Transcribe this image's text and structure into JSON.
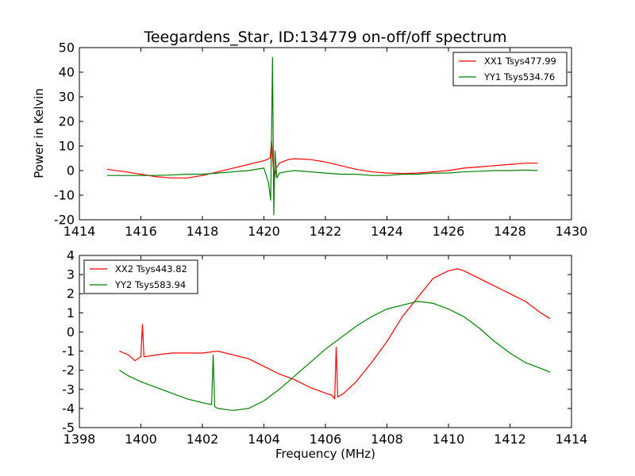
{
  "title": "Teegardens_Star, ID:134779 on-off/off spectrum",
  "colors": {
    "red": "#ff0000",
    "green": "#008000",
    "axis": "#000000"
  },
  "chart_data": [
    {
      "type": "line",
      "ylabel": "Power in Kelvin",
      "xlabel": "",
      "xlim": [
        1414,
        1430
      ],
      "ylim": [
        -20,
        50
      ],
      "xticks": [
        1414,
        1416,
        1418,
        1420,
        1422,
        1424,
        1426,
        1428,
        1430
      ],
      "yticks": [
        -20,
        -10,
        0,
        10,
        20,
        30,
        40,
        50
      ],
      "legend_position": "top-right",
      "series": [
        {
          "name": "XX1 Tsys477.99",
          "color": "#ff0000",
          "x": [
            1414.9,
            1415.5,
            1416.0,
            1416.5,
            1417.0,
            1417.5,
            1418.0,
            1418.5,
            1419.0,
            1419.5,
            1420.0,
            1420.2,
            1420.25,
            1420.3,
            1420.35,
            1420.4,
            1420.5,
            1420.8,
            1421.0,
            1421.5,
            1422.0,
            1422.5,
            1423.0,
            1423.5,
            1424.0,
            1424.5,
            1425.0,
            1425.5,
            1426.0,
            1426.5,
            1427.0,
            1427.5,
            1428.0,
            1428.5,
            1428.9
          ],
          "y": [
            0.5,
            -0.5,
            -1.5,
            -2.5,
            -3.0,
            -3.0,
            -2.0,
            -0.5,
            1.0,
            2.5,
            4.0,
            5.0,
            12.0,
            2.0,
            -3.0,
            1.0,
            3.0,
            4.5,
            4.8,
            4.5,
            3.5,
            2.0,
            0.5,
            -0.5,
            -1.0,
            -1.2,
            -1.0,
            -0.5,
            0.0,
            1.0,
            1.5,
            2.0,
            2.5,
            3.0,
            3.0
          ]
        },
        {
          "name": "YY1 Tsys534.76",
          "color": "#008000",
          "x": [
            1414.9,
            1415.5,
            1416.0,
            1416.5,
            1417.0,
            1417.5,
            1418.0,
            1418.5,
            1419.0,
            1419.5,
            1420.0,
            1420.15,
            1420.22,
            1420.28,
            1420.32,
            1420.36,
            1420.42,
            1420.5,
            1420.7,
            1421.0,
            1421.5,
            1422.0,
            1422.5,
            1423.0,
            1423.5,
            1424.0,
            1424.5,
            1425.0,
            1425.5,
            1426.0,
            1426.5,
            1427.0,
            1427.5,
            1428.0,
            1428.5,
            1428.9
          ],
          "y": [
            -2.0,
            -2.0,
            -2.0,
            -2.0,
            -1.8,
            -1.5,
            -1.5,
            -1.0,
            -0.5,
            0.0,
            1.0,
            -5.0,
            -12.0,
            46.0,
            -18.0,
            8.0,
            -3.0,
            -1.0,
            -0.5,
            0.0,
            -0.5,
            -1.0,
            -1.5,
            -1.5,
            -2.0,
            -2.0,
            -1.5,
            -1.5,
            -1.0,
            -1.0,
            -0.5,
            -0.3,
            0.0,
            0.0,
            0.2,
            0.0
          ]
        }
      ]
    },
    {
      "type": "line",
      "ylabel": "",
      "xlabel": "Frequency (MHz)",
      "xlim": [
        1398,
        1414
      ],
      "ylim": [
        -5,
        4
      ],
      "xticks": [
        1398,
        1400,
        1402,
        1404,
        1406,
        1408,
        1410,
        1412,
        1414
      ],
      "yticks": [
        -5,
        -4,
        -3,
        -2,
        -1,
        0,
        1,
        2,
        3,
        4
      ],
      "legend_position": "top-left",
      "series": [
        {
          "name": "XX2 Tsys443.82",
          "color": "#ff0000",
          "x": [
            1399.3,
            1399.6,
            1399.8,
            1400.0,
            1400.05,
            1400.1,
            1400.5,
            1401.0,
            1401.5,
            1402.0,
            1402.5,
            1403.0,
            1403.5,
            1404.0,
            1404.5,
            1405.0,
            1405.5,
            1406.0,
            1406.2,
            1406.3,
            1406.35,
            1406.4,
            1406.6,
            1407.0,
            1407.5,
            1408.0,
            1408.5,
            1409.0,
            1409.5,
            1410.0,
            1410.3,
            1410.5,
            1411.0,
            1411.5,
            1412.0,
            1412.5,
            1413.0,
            1413.3
          ],
          "y": [
            -1.0,
            -1.2,
            -1.5,
            -1.3,
            0.4,
            -1.3,
            -1.2,
            -1.1,
            -1.1,
            -1.1,
            -1.0,
            -1.2,
            -1.4,
            -1.8,
            -2.2,
            -2.5,
            -2.9,
            -3.2,
            -3.3,
            -3.5,
            -0.8,
            -3.4,
            -3.2,
            -2.6,
            -1.6,
            -0.5,
            0.8,
            1.8,
            2.8,
            3.2,
            3.3,
            3.2,
            2.8,
            2.4,
            2.0,
            1.6,
            1.0,
            0.7
          ]
        },
        {
          "name": "YY2 Tsys583.94",
          "color": "#008000",
          "x": [
            1399.3,
            1399.6,
            1400.0,
            1400.5,
            1401.0,
            1401.5,
            1402.0,
            1402.3,
            1402.35,
            1402.4,
            1402.5,
            1403.0,
            1403.5,
            1404.0,
            1404.5,
            1405.0,
            1405.5,
            1406.0,
            1406.5,
            1407.0,
            1407.5,
            1408.0,
            1408.5,
            1409.0,
            1409.5,
            1410.0,
            1410.5,
            1411.0,
            1411.5,
            1412.0,
            1412.5,
            1413.0,
            1413.3
          ],
          "y": [
            -2.0,
            -2.3,
            -2.6,
            -2.9,
            -3.2,
            -3.5,
            -3.7,
            -3.8,
            -1.2,
            -3.9,
            -4.0,
            -4.1,
            -4.0,
            -3.6,
            -3.0,
            -2.3,
            -1.6,
            -0.9,
            -0.3,
            0.3,
            0.8,
            1.2,
            1.4,
            1.6,
            1.5,
            1.2,
            0.8,
            0.2,
            -0.5,
            -1.1,
            -1.6,
            -1.9,
            -2.1
          ]
        }
      ]
    }
  ]
}
